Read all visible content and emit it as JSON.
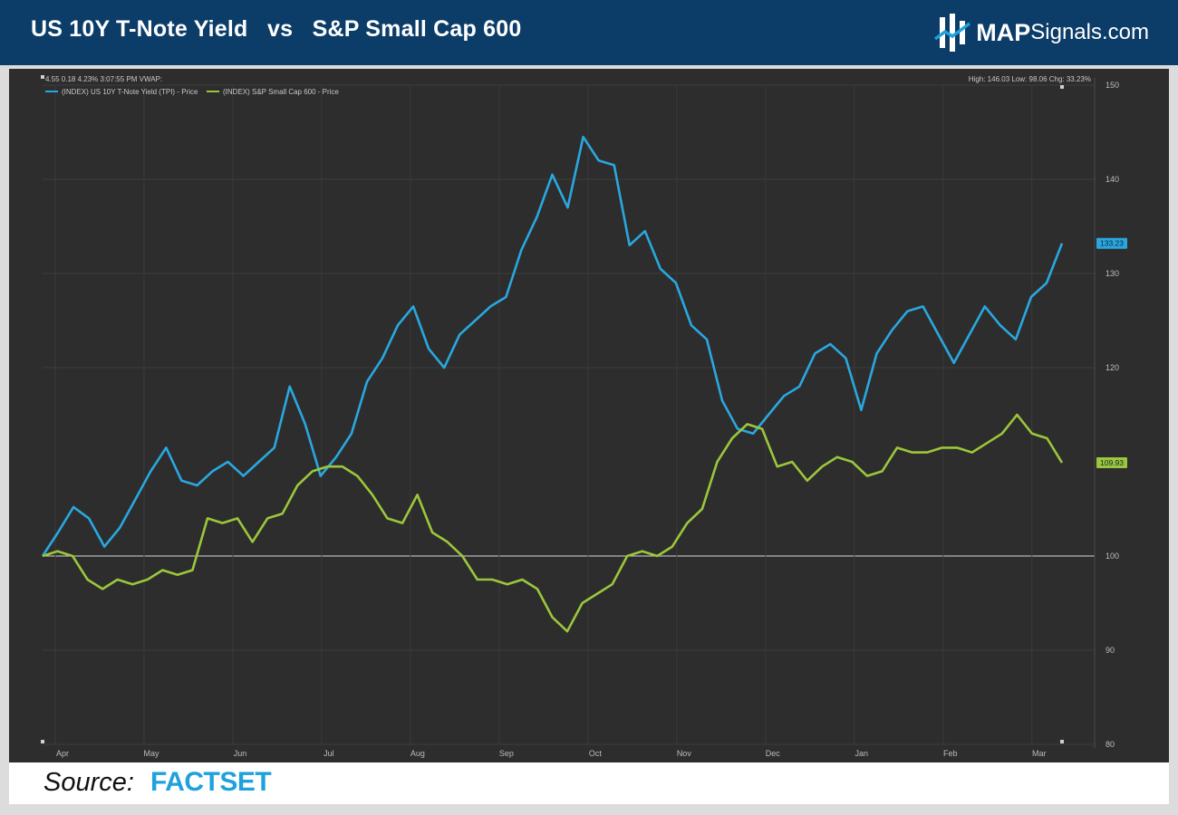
{
  "header": {
    "title": "US 10Y T-Note Yield   vs   S&P Small Cap 600",
    "brand_bold": "MAP",
    "brand_rest": "Signals.com",
    "brand_icon": "mapsignals-logo-icon"
  },
  "toolbar": {
    "info_left": "4.55 0.18 4.23% 3:07:55 PM VWAP:",
    "info_right": "High: 146.03 Low: 98.06 Chg: 33.23%"
  },
  "footer": {
    "source_label": "Source:",
    "source_name": "FACTSET"
  },
  "colors": {
    "header_bg": "#0c3d68",
    "chart_bg": "#2d2d2d",
    "series_yield": "#29a8e0",
    "series_small_cap": "#9cc63b",
    "factset": "#1fa1dc"
  },
  "chart_data": {
    "type": "line",
    "title": "",
    "xlabel": "",
    "ylabel": "",
    "ylim": [
      80,
      150
    ],
    "y_ticks": [
      80,
      90,
      100,
      120,
      130,
      140,
      150
    ],
    "x_ticks": [
      "Apr",
      "May",
      "Jun",
      "Jul",
      "Aug",
      "Sep",
      "Oct",
      "Nov",
      "Dec",
      "Jan",
      "Feb",
      "Mar"
    ],
    "reference_line": 100,
    "grid": true,
    "legend_position": "top-left",
    "series": [
      {
        "name": "(INDEX) US 10Y T-Note Yield (TPI) - Price",
        "color": "#29a8e0",
        "last_label": "133.23",
        "values": [
          100,
          102.5,
          105.2,
          104,
          101,
          103,
          106,
          109,
          111.5,
          108,
          107.5,
          109,
          110,
          108.5,
          110,
          111.5,
          118,
          114,
          108.5,
          110.5,
          113,
          118.5,
          121,
          124.5,
          126.5,
          122,
          120,
          123.5,
          125,
          126.5,
          127.5,
          132.5,
          136,
          140.5,
          137,
          144.5,
          142,
          141.5,
          133,
          134.5,
          130.5,
          129,
          124.5,
          123,
          116.5,
          113.5,
          113,
          115,
          117,
          118,
          121.5,
          122.5,
          121,
          115.5,
          121.5,
          124,
          126,
          126.5,
          123.5,
          120.5,
          123.5,
          126.5,
          124.5,
          123,
          127.5,
          129,
          133.2
        ]
      },
      {
        "name": "(INDEX) S&P Small Cap 600 - Price",
        "color": "#9cc63b",
        "last_label": "109.93",
        "values": [
          100,
          100.5,
          100,
          97.5,
          96.5,
          97.5,
          97,
          97.5,
          98.5,
          98,
          98.5,
          104,
          103.5,
          104,
          101.5,
          104,
          104.5,
          107.5,
          109,
          109.5,
          109.5,
          108.5,
          106.5,
          104,
          103.5,
          106.5,
          102.5,
          101.5,
          100,
          97.5,
          97.5,
          97,
          97.5,
          96.5,
          93.5,
          92,
          95,
          96,
          97,
          100,
          100.5,
          100,
          101,
          103.5,
          105,
          110,
          112.5,
          114,
          113.5,
          109.5,
          110,
          108,
          109.5,
          110.5,
          110,
          108.5,
          109,
          111.5,
          111,
          111,
          111.5,
          111.5,
          111,
          112,
          113,
          115,
          113,
          112.5,
          109.9
        ]
      }
    ]
  }
}
